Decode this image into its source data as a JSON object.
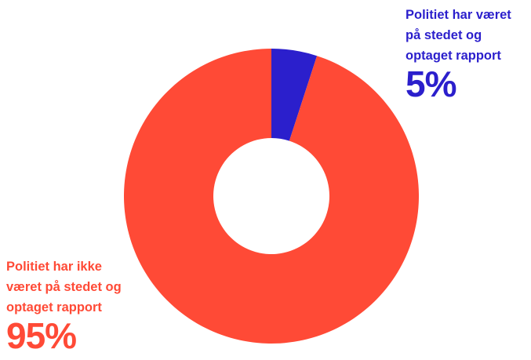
{
  "chart_data": {
    "type": "pie",
    "donut": true,
    "title": "",
    "slices": [
      {
        "label_lines": [
          "Politiet har været",
          "på stedet og",
          "optaget rapport"
        ],
        "percent_label": "5%",
        "value": 5,
        "color": "#2b1fcc"
      },
      {
        "label_lines": [
          "Politiet har ikke",
          "været på stedet og",
          "optaget rapport"
        ],
        "percent_label": "95%",
        "value": 95,
        "color": "#ff4a36"
      }
    ],
    "start_angle_deg": 0,
    "direction": "clockwise",
    "legend": "none"
  }
}
